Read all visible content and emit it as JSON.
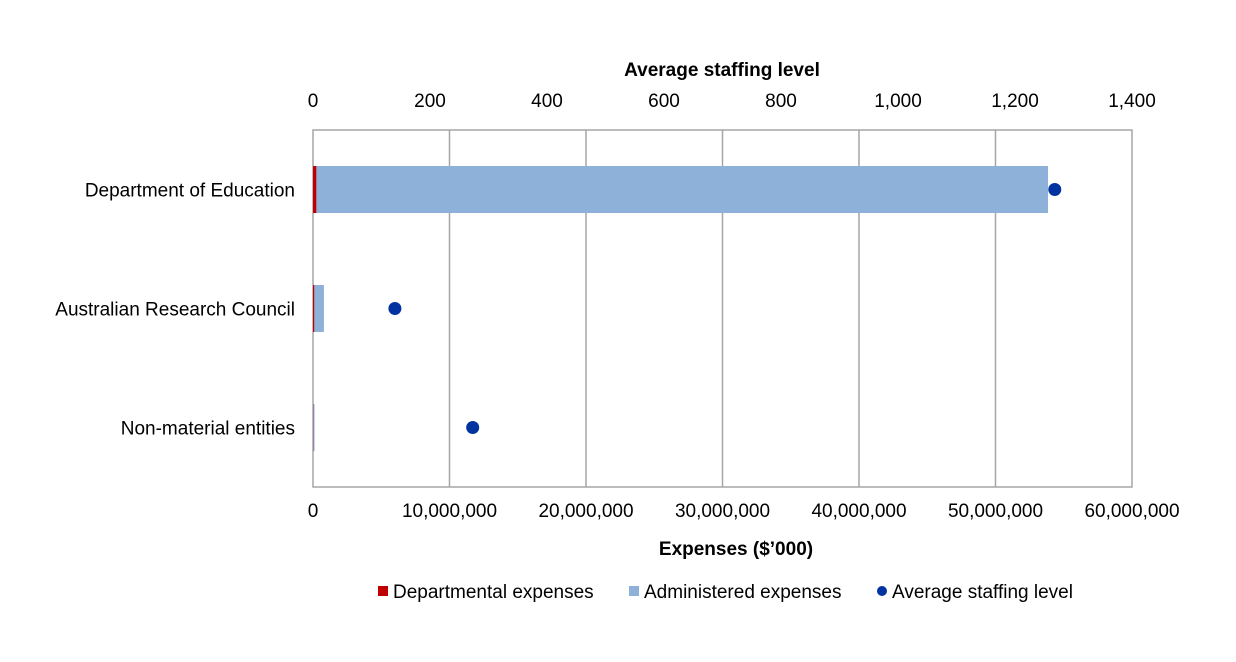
{
  "chart_data": {
    "type": "bar",
    "orientation": "horizontal",
    "stacked": true,
    "categories": [
      "Department of Education",
      "Australian Research Council",
      "Non-material entities"
    ],
    "series": [
      {
        "name": "Departmental expenses",
        "axis": "bottom",
        "color": "#C00000",
        "values": [
          250000,
          100000,
          20000
        ]
      },
      {
        "name": "Administered expenses",
        "axis": "bottom",
        "color": "#8EB1DA",
        "values": [
          53600000,
          700000,
          20000
        ]
      },
      {
        "name": "Average staffing level",
        "axis": "top",
        "type": "scatter",
        "color": "#0033A0",
        "values": [
          1268,
          140,
          273
        ]
      }
    ],
    "x_bottom": {
      "label": "Expenses ($’000)",
      "range": [
        0,
        60000000
      ],
      "ticks": [
        "0",
        "10,000,000",
        "20,000,000",
        "30,000,000",
        "40,000,000",
        "50,000,000",
        "60,000,000"
      ],
      "tick_values": [
        0,
        10000000,
        20000000,
        30000000,
        40000000,
        50000000,
        60000000
      ]
    },
    "x_top": {
      "label": "Average staffing level",
      "range": [
        0,
        1400
      ],
      "ticks": [
        "0",
        "200",
        "400",
        "600",
        "800",
        "1,000",
        "1,200",
        "1,400"
      ],
      "tick_values": [
        0,
        200,
        400,
        600,
        800,
        1000,
        1200,
        1400
      ]
    },
    "grid": true,
    "legend": "bottom-center",
    "colors": {
      "gridline": "#A6A6A6",
      "plot_border": "#A6A6A6"
    }
  }
}
